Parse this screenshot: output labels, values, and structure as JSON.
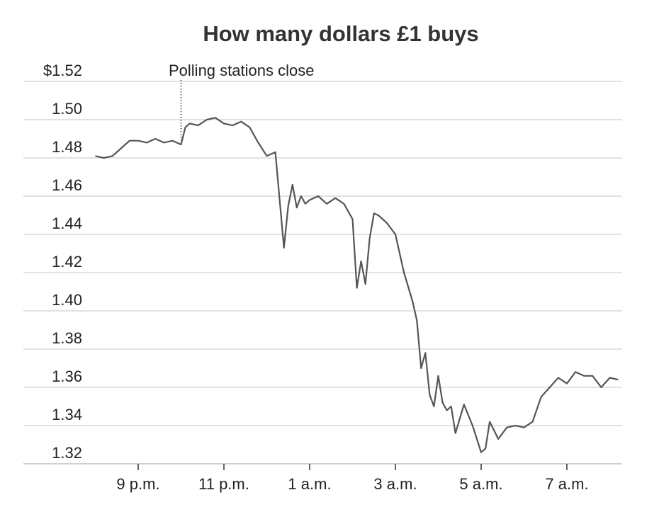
{
  "chart_data": {
    "type": "line",
    "title": "How many dollars £1 buys",
    "xlabel": "",
    "ylabel": "",
    "x_tick_labels": [
      "9 p.m.",
      "11 p.m.",
      "1 a.m.",
      "3 a.m.",
      "5 a.m.",
      "7 a.m."
    ],
    "x_tick_hours": [
      21,
      23,
      25,
      27,
      29,
      31
    ],
    "y_tick_labels": [
      "$1.52",
      "1.50",
      "1.48",
      "1.46",
      "1.44",
      "1.42",
      "1.40",
      "1.38",
      "1.36",
      "1.34",
      "1.32"
    ],
    "y_tick_values": [
      1.52,
      1.5,
      1.48,
      1.46,
      1.44,
      1.42,
      1.4,
      1.38,
      1.36,
      1.34,
      1.32
    ],
    "ylim": [
      1.32,
      1.52
    ],
    "xlim_hours": [
      19.7,
      33.3
    ],
    "grid": "horizontal",
    "line_color": "#555555",
    "gridline_color": "#d0d0d0",
    "annotation": {
      "text": "Polling stations close",
      "x_hour": 22.0
    },
    "series": [
      {
        "x_hours": [
          20.0,
          20.2,
          20.4,
          20.6,
          20.8,
          21.0,
          21.2,
          21.4,
          21.6,
          21.8,
          22.0,
          22.1,
          22.2,
          22.4,
          22.6,
          22.8,
          23.0,
          23.2,
          23.4,
          23.6,
          23.8,
          24.0,
          24.2,
          24.4,
          24.5,
          24.6,
          24.7,
          24.8,
          24.9,
          25.0,
          25.2,
          25.4,
          25.6,
          25.8,
          26.0,
          26.1,
          26.2,
          26.3,
          26.4,
          26.5,
          26.6,
          26.8,
          27.0,
          27.2,
          27.4,
          27.5,
          27.6,
          27.7,
          27.8,
          27.9,
          28.0,
          28.1,
          28.2,
          28.3,
          28.4,
          28.6,
          28.8,
          29.0,
          29.1,
          29.2,
          29.4,
          29.6,
          29.8,
          30.0,
          30.2,
          30.4,
          30.6,
          30.8,
          31.0,
          31.2,
          31.4,
          31.6,
          31.8,
          32.0,
          32.2
        ],
        "values": [
          1.481,
          1.48,
          1.481,
          1.485,
          1.489,
          1.489,
          1.488,
          1.49,
          1.488,
          1.489,
          1.487,
          1.496,
          1.498,
          1.497,
          1.5,
          1.501,
          1.498,
          1.497,
          1.499,
          1.496,
          1.488,
          1.481,
          1.483,
          1.433,
          1.455,
          1.466,
          1.454,
          1.46,
          1.456,
          1.458,
          1.46,
          1.456,
          1.459,
          1.456,
          1.448,
          1.412,
          1.426,
          1.414,
          1.438,
          1.451,
          1.45,
          1.446,
          1.44,
          1.42,
          1.405,
          1.395,
          1.37,
          1.378,
          1.356,
          1.35,
          1.366,
          1.352,
          1.348,
          1.35,
          1.336,
          1.351,
          1.34,
          1.326,
          1.328,
          1.342,
          1.333,
          1.339,
          1.34,
          1.339,
          1.342,
          1.355,
          1.36,
          1.365,
          1.362,
          1.368,
          1.366,
          1.366,
          1.36,
          1.365,
          1.364
        ]
      }
    ]
  }
}
